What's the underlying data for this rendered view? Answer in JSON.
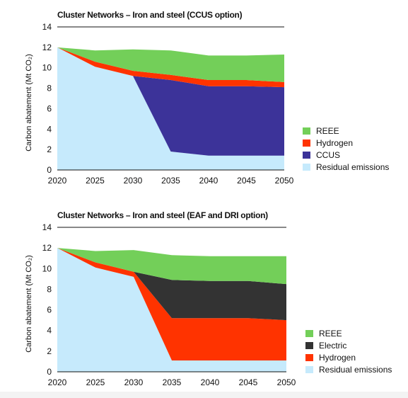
{
  "chart_data": [
    {
      "type": "area",
      "title": "Cluster Networks – Iron and steel (CCUS option)",
      "ylabel": "Carbon abatement (Mt CO₂)",
      "xlabel": "",
      "x": [
        "2020",
        "2025",
        "2030",
        "2035",
        "2040",
        "2045",
        "2050"
      ],
      "ylim": [
        0,
        14
      ],
      "yticks": [
        "0",
        "2",
        "4",
        "6",
        "8",
        "10",
        "12",
        "14"
      ],
      "stacked": true,
      "legend_position": "right",
      "series": [
        {
          "name": "Residual emissions",
          "color": "#c6eafc",
          "values": [
            12.0,
            10.1,
            9.2,
            1.8,
            1.4,
            1.4,
            1.4
          ]
        },
        {
          "name": "CCUS",
          "color": "#3c3399",
          "values": [
            0.0,
            0.0,
            0.0,
            7.0,
            6.8,
            6.8,
            6.7
          ]
        },
        {
          "name": "Hydrogen",
          "color": "#ff3300",
          "values": [
            0.0,
            0.5,
            0.5,
            0.5,
            0.6,
            0.6,
            0.5
          ]
        },
        {
          "name": "REEE",
          "color": "#73cf59",
          "values": [
            0.0,
            1.1,
            2.1,
            2.4,
            2.4,
            2.4,
            2.7
          ]
        }
      ],
      "legend_order": [
        "REEE",
        "Hydrogen",
        "CCUS",
        "Residual emissions"
      ]
    },
    {
      "type": "area",
      "title": "Cluster Networks – Iron and steel (EAF and DRI option)",
      "ylabel": "Carbon abatement (Mt CO₂)",
      "xlabel": "",
      "x": [
        "2020",
        "2025",
        "2030",
        "2035",
        "2040",
        "2045",
        "2050"
      ],
      "ylim": [
        0,
        14
      ],
      "yticks": [
        "0",
        "2",
        "4",
        "6",
        "8",
        "10",
        "12",
        "14"
      ],
      "stacked": true,
      "legend_position": "right",
      "series": [
        {
          "name": "Residual emissions",
          "color": "#c6eafc",
          "values": [
            12.0,
            10.1,
            9.2,
            1.1,
            1.1,
            1.1,
            1.1
          ]
        },
        {
          "name": "Hydrogen",
          "color": "#ff3300",
          "values": [
            0.0,
            0.5,
            0.5,
            4.1,
            4.1,
            4.1,
            3.9
          ]
        },
        {
          "name": "Electric",
          "color": "#333333",
          "values": [
            0.0,
            0.0,
            0.0,
            3.7,
            3.6,
            3.6,
            3.5
          ]
        },
        {
          "name": "REEE",
          "color": "#73cf59",
          "values": [
            0.0,
            1.1,
            2.1,
            2.4,
            2.4,
            2.4,
            2.7
          ]
        }
      ],
      "legend_order": [
        "REEE",
        "Electric",
        "Hydrogen",
        "Residual emissions"
      ]
    }
  ]
}
